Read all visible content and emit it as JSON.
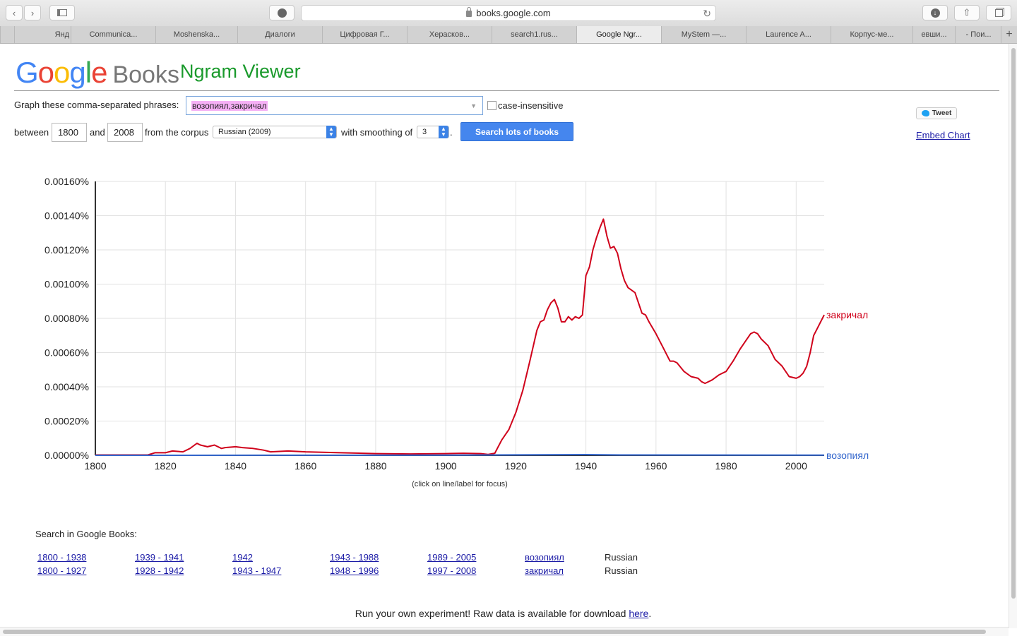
{
  "browser": {
    "url": "books.google.com",
    "tabs": [
      "Янд",
      "Communica...",
      "Moshenska...",
      "Диалоги",
      "Цифровая Г...",
      "Херасков...",
      "search1.rus...",
      "Google Ngr...",
      "MyStem —...",
      "Laurence A...",
      "Корпус-ме...",
      "евши...",
      "- Пои..."
    ],
    "new_tab": "+"
  },
  "header": {
    "logo_letters": [
      "G",
      "o",
      "o",
      "g",
      "l",
      "e"
    ],
    "logo_colors": [
      "#4285F4",
      "#EA4335",
      "#FBBC05",
      "#4285F4",
      "#34A853",
      "#EA4335"
    ],
    "logo_books": "Books",
    "app_name": "Ngram Viewer"
  },
  "form": {
    "phrases_label": "Graph these comma-separated phrases:",
    "phrases_value": "возопиял,закричал",
    "case_label": "case-insensitive",
    "between_label": "between",
    "start_year": "1800",
    "and_label": "and",
    "end_year": "2008",
    "corpus_label": "from the corpus",
    "corpus_value": "Russian (2009)",
    "smoothing_label": "with smoothing of",
    "smoothing_value": "3",
    "period": ".",
    "search_button": "Search lots of books"
  },
  "side": {
    "tweet_label": "Tweet",
    "embed_label": "Embed Chart"
  },
  "chart_data": {
    "type": "line",
    "ylim": [
      0,
      0.0016
    ],
    "xlim": [
      1800,
      2008
    ],
    "y_ticks": [
      "0.00000%",
      "0.00020%",
      "0.00040%",
      "0.00060%",
      "0.00080%",
      "0.00100%",
      "0.00120%",
      "0.00140%",
      "0.00160%"
    ],
    "x_ticks": [
      "1800",
      "1820",
      "1840",
      "1860",
      "1880",
      "1900",
      "1920",
      "1940",
      "1960",
      "1980",
      "2000"
    ],
    "grid": true,
    "series": [
      {
        "name": "закричал",
        "color": "#d0021b",
        "x": [
          1800,
          1815,
          1817,
          1820,
          1822,
          1825,
          1827,
          1829,
          1830,
          1832,
          1834,
          1836,
          1837,
          1840,
          1842,
          1845,
          1848,
          1850,
          1855,
          1860,
          1870,
          1880,
          1890,
          1900,
          1905,
          1910,
          1912,
          1914,
          1916,
          1918,
          1920,
          1922,
          1924,
          1926,
          1927,
          1928,
          1929,
          1930,
          1931,
          1932,
          1933,
          1934,
          1935,
          1936,
          1937,
          1938,
          1939,
          1940,
          1941,
          1942,
          1943,
          1944,
          1945,
          1946,
          1947,
          1948,
          1949,
          1950,
          1951,
          1952,
          1954,
          1956,
          1957,
          1958,
          1960,
          1962,
          1964,
          1965,
          1966,
          1968,
          1970,
          1972,
          1973,
          1974,
          1976,
          1978,
          1980,
          1982,
          1984,
          1986,
          1987,
          1988,
          1989,
          1990,
          1992,
          1994,
          1995,
          1996,
          1998,
          2000,
          2001,
          2002,
          2003,
          2004,
          2005,
          2006,
          2008
        ],
        "y": [
          2e-06,
          2e-06,
          1.5e-05,
          1.5e-05,
          2.5e-05,
          2e-05,
          4e-05,
          7e-05,
          6e-05,
          5e-05,
          6e-05,
          4e-05,
          4.5e-05,
          5e-05,
          4.5e-05,
          4e-05,
          3e-05,
          2e-05,
          2.5e-05,
          2e-05,
          1.5e-05,
          1e-05,
          8e-06,
          1e-05,
          1.2e-05,
          1e-05,
          5e-06,
          1.2e-05,
          9e-05,
          0.00015,
          0.00025,
          0.00038,
          0.00055,
          0.00073,
          0.00078,
          0.00079,
          0.00085,
          0.00089,
          0.00091,
          0.00086,
          0.00078,
          0.00078,
          0.00081,
          0.00079,
          0.00081,
          0.0008,
          0.00082,
          0.00105,
          0.0011,
          0.0012,
          0.00127,
          0.00133,
          0.00138,
          0.00128,
          0.00121,
          0.00122,
          0.00118,
          0.00109,
          0.00102,
          0.00098,
          0.00095,
          0.00083,
          0.00082,
          0.00078,
          0.00071,
          0.00063,
          0.00055,
          0.00055,
          0.00054,
          0.00049,
          0.00046,
          0.00045,
          0.00043,
          0.00042,
          0.00044,
          0.00047,
          0.00049,
          0.00055,
          0.00062,
          0.00068,
          0.00071,
          0.00072,
          0.00071,
          0.00068,
          0.00064,
          0.00056,
          0.00054,
          0.00052,
          0.00046,
          0.00045,
          0.00046,
          0.00048,
          0.00052,
          0.0006,
          0.0007,
          0.00074,
          0.00082
        ]
      },
      {
        "name": "возопиял",
        "color": "#3366cc",
        "x": [
          1800,
          1900,
          1940,
          1950,
          2008
        ],
        "y": [
          0,
          1e-06,
          4e-06,
          2e-06,
          1e-06
        ]
      }
    ]
  },
  "chart_hint": "(click on line/label for focus)",
  "results": {
    "heading": "Search in Google Books:",
    "row1": [
      "1800 - 1938",
      "1939 - 1941",
      "1942",
      "1943 - 1988",
      "1989 - 2005"
    ],
    "row2": [
      "1800 - 1927",
      "1928 - 1942",
      "1943 - 1947",
      "1948 - 1996",
      "1997 - 2008"
    ],
    "term1": "возопиял",
    "term2": "закричал",
    "lang": "Russian"
  },
  "footer": {
    "raw_text": "Run your own experiment! Raw data is available for download",
    "raw_link": "here",
    "raw_end": "."
  }
}
